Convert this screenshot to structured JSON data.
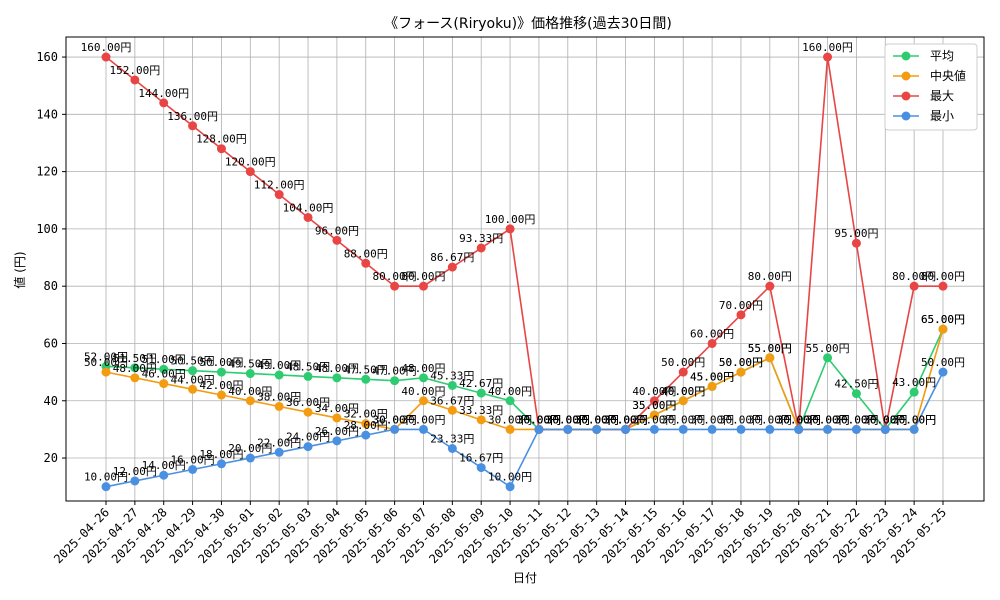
{
  "chart_data": {
    "type": "line",
    "title": "《フォース(Riryoku)》価格推移(過去30日間)",
    "xlabel": "日付",
    "ylabel": "値 (円)",
    "ylim": [
      5,
      167
    ],
    "yticks": [
      20,
      40,
      60,
      80,
      100,
      120,
      140,
      160
    ],
    "grid": true,
    "legend_position": "top-right",
    "categories": [
      "2025-04-26",
      "2025-04-27",
      "2025-04-28",
      "2025-04-29",
      "2025-04-30",
      "2025-05-01",
      "2025-05-02",
      "2025-05-03",
      "2025-05-04",
      "2025-05-05",
      "2025-05-06",
      "2025-05-07",
      "2025-05-08",
      "2025-05-09",
      "2025-05-10",
      "2025-05-11",
      "2025-05-12",
      "2025-05-13",
      "2025-05-14",
      "2025-05-15",
      "2025-05-16",
      "2025-05-17",
      "2025-05-18",
      "2025-05-19",
      "2025-05-20",
      "2025-05-21",
      "2025-05-22",
      "2025-05-23",
      "2025-05-24",
      "2025-05-25"
    ],
    "series": [
      {
        "name": "平均",
        "color": "#2ecc71",
        "values": [
          52.0,
          51.5,
          51.0,
          50.5,
          50.0,
          49.5,
          49.0,
          48.5,
          48.0,
          47.5,
          47.0,
          48.0,
          45.33,
          42.67,
          40.0,
          30.0,
          30.0,
          30.0,
          30.0,
          35.0,
          40.0,
          45.0,
          50.0,
          55.0,
          30.0,
          55.0,
          42.5,
          30.0,
          43.0,
          65.0
        ],
        "labels": [
          "52.00円",
          "51.50円",
          "51.00円",
          "50.50円",
          "50.00円",
          "49.50円",
          "49.00円",
          "48.50円",
          "48.00円",
          "47.50円",
          "47.00円",
          "48.00円",
          "45.33円",
          "42.67円",
          "40.00円",
          "30.00円",
          "30.00円",
          "30.00円",
          "30.00円",
          "35.00円",
          "40.00円",
          "45.00円",
          "50.00円",
          "55.00円",
          "30.00円",
          "55.00円",
          "42.50円",
          "30.00円",
          "43.00円",
          "65.00円"
        ]
      },
      {
        "name": "中央値",
        "color": "#f39c12",
        "values": [
          50.0,
          48.0,
          46.0,
          44.0,
          42.0,
          40.0,
          38.0,
          36.0,
          34.0,
          32.0,
          30.0,
          40.0,
          36.67,
          33.33,
          30.0,
          30.0,
          30.0,
          30.0,
          30.0,
          35.0,
          40.0,
          45.0,
          50.0,
          55.0,
          30.0,
          30.0,
          30.0,
          30.0,
          30.0,
          65.0
        ],
        "labels": [
          "50.00円",
          "48.00円",
          "46.00円",
          "44.00円",
          "42.00円",
          "40.00円",
          "38.00円",
          "36.00円",
          "34.00円",
          "32.00円",
          "30.00円",
          "40.00円",
          "36.67円",
          "33.33円",
          "30.00円",
          "30.00円",
          "30.00円",
          "30.00円",
          "30.00円",
          "35.00円",
          "40.00円",
          "45.00円",
          "50.00円",
          "55.00円",
          "30.00円",
          "30.00円",
          "30.00円",
          "30.00円",
          "30.00円",
          "65.00円"
        ]
      },
      {
        "name": "最大",
        "color": "#e84545",
        "values": [
          160.0,
          152.0,
          144.0,
          136.0,
          128.0,
          120.0,
          112.0,
          104.0,
          96.0,
          88.0,
          80.0,
          80.0,
          86.67,
          93.33,
          100.0,
          30.0,
          30.0,
          30.0,
          30.0,
          40.0,
          50.0,
          60.0,
          70.0,
          80.0,
          30.0,
          160.0,
          95.0,
          30.0,
          80.0,
          80.0
        ],
        "labels": [
          "160.00円",
          "152.00円",
          "144.00円",
          "136.00円",
          "128.00円",
          "120.00円",
          "112.00円",
          "104.00円",
          "96.00円",
          "88.00円",
          "80.00円",
          "80.00円",
          "86.67円",
          "93.33円",
          "100.00円",
          "30.00円",
          "30.00円",
          "30.00円",
          "30.00円",
          "40.00円",
          "50.00円",
          "60.00円",
          "70.00円",
          "80.00円",
          "30.00円",
          "160.00円",
          "95.00円",
          "30.00円",
          "80.00円",
          "80.00円"
        ]
      },
      {
        "name": "最小",
        "color": "#4a90e2",
        "values": [
          10.0,
          12.0,
          14.0,
          16.0,
          18.0,
          20.0,
          22.0,
          24.0,
          26.0,
          28.0,
          30.0,
          30.0,
          23.33,
          16.67,
          10.0,
          30.0,
          30.0,
          30.0,
          30.0,
          30.0,
          30.0,
          30.0,
          30.0,
          30.0,
          30.0,
          30.0,
          30.0,
          30.0,
          30.0,
          50.0
        ],
        "labels": [
          "10.00円",
          "12.00円",
          "14.00円",
          "16.00円",
          "18.00円",
          "20.00円",
          "22.00円",
          "24.00円",
          "26.00円",
          "28.00円",
          "30.00円",
          "30.00円",
          "23.33円",
          "16.67円",
          "10.00円",
          "30.00円",
          "30.00円",
          "30.00円",
          "30.00円",
          "30.00円",
          "30.00円",
          "30.00円",
          "30.00円",
          "30.00円",
          "30.00円",
          "30.00円",
          "30.00円",
          "30.00円",
          "30.00円",
          "50.00円"
        ]
      }
    ]
  }
}
